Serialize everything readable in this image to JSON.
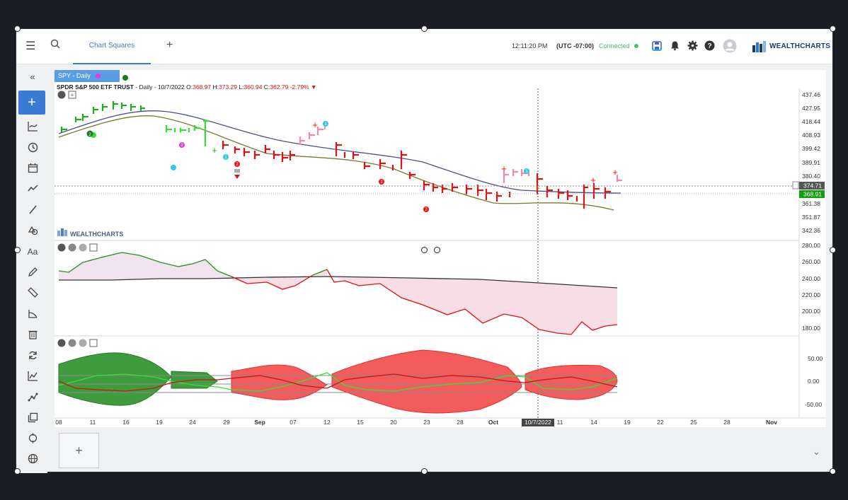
{
  "topbar": {
    "tab_label": "Chart Squares",
    "time": "12:11:20 PM",
    "timezone": "(UTC -07:00)",
    "connection_status": "Connected",
    "logo_text": "WEALTHCHARTS"
  },
  "chart": {
    "symbol_chip": "SPY - Daily",
    "quote_name": "SPDR S&P 500 ETF TRUST",
    "quote_details": " - Daily - 10/7/2022 O:",
    "open": "368.97",
    "high_label": " H:",
    "high": "373.29",
    "low_label": " L:",
    "low": "360.94",
    "close_label": " C:",
    "close": "362.79",
    "change": "-2.79%",
    "watermark": "WEALTHCHARTS",
    "price_axis": [
      "437.46",
      "427.95",
      "418.44",
      "408.93",
      "399.42",
      "389.91",
      "380.40",
      "361.38",
      "351.87",
      "342.36"
    ],
    "price_tag_gray": "374.71",
    "price_tag_green": "368.91",
    "ind1_axis": [
      "280.00",
      "260.00",
      "240.00",
      "220.00",
      "200.00",
      "180.00"
    ],
    "ind2_axis": [
      "50.00",
      "0.00",
      "-50.00"
    ],
    "date_axis": [
      "08",
      "11",
      "16",
      "19",
      "24",
      "29",
      "Sep",
      "07",
      "12",
      "15",
      "20",
      "23",
      "28",
      "Oct",
      "11",
      "14",
      "19",
      "22",
      "25",
      "28",
      "Nov"
    ],
    "crosshair_date": "10/7/2022",
    "colors": {
      "up": "#1fae1f",
      "down": "#e11",
      "accent": "#3a7bd5",
      "pink": "#f08aa8",
      "cyan": "#33c6e8"
    }
  },
  "sidebar": {
    "icons": [
      "collapse-icon",
      "add-icon",
      "chart-type-icon",
      "clock-icon",
      "calendar-icon",
      "trend-icon",
      "line-tool-icon",
      "shapes-icon",
      "text-icon",
      "pencil-icon",
      "ruler-icon",
      "fib-icon",
      "trash-icon",
      "sync-icon",
      "indicator-icon",
      "pattern-icon",
      "layers-icon",
      "crosshair-icon",
      "globe-icon"
    ],
    "text_tool_label": "Aa"
  },
  "bottom": {
    "add_label": "+"
  }
}
